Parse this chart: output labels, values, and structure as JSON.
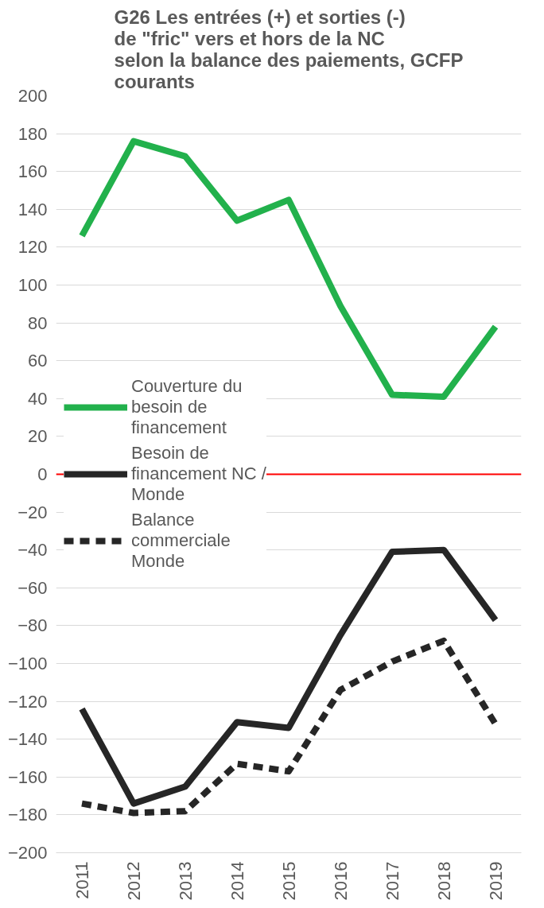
{
  "chart_data": {
    "type": "line",
    "title": "G26  Les  entrées (+) et sorties (-) de \"fric\" vers et hors de la NC selon la balance des paiements, GCFP courants",
    "categories": [
      "2011",
      "2012",
      "2013",
      "2014",
      "2015",
      "2016",
      "2017",
      "2018",
      "2019"
    ],
    "series": [
      {
        "name": "Couverture du besoin de financement",
        "color": "#22b14c",
        "line_style": "solid",
        "values": [
          126,
          176,
          168,
          134,
          145,
          89,
          42,
          41,
          78
        ]
      },
      {
        "name": "Besoin de financement NC / Monde",
        "color": "#262626",
        "line_style": "solid",
        "values": [
          -124,
          -174,
          -165,
          -131,
          -134,
          -85,
          -41,
          -40,
          -77
        ]
      },
      {
        "name": "Balance commerciale Monde",
        "color": "#262626",
        "line_style": "dashed",
        "values": [
          -174,
          -179,
          -178,
          -153,
          -157,
          -114,
          -99,
          -88,
          -132
        ]
      }
    ],
    "ylim": [
      -200,
      200
    ],
    "yticks": [
      -200,
      -180,
      -160,
      -140,
      -120,
      -100,
      -80,
      -60,
      -40,
      -20,
      0,
      20,
      40,
      60,
      80,
      100,
      120,
      140,
      160,
      180,
      200
    ],
    "grid": "y",
    "legend": "left",
    "marker": "none",
    "ref_lines": [
      {
        "axis": "y",
        "value": 0,
        "label": null,
        "color": "#ff0000"
      }
    ]
  }
}
